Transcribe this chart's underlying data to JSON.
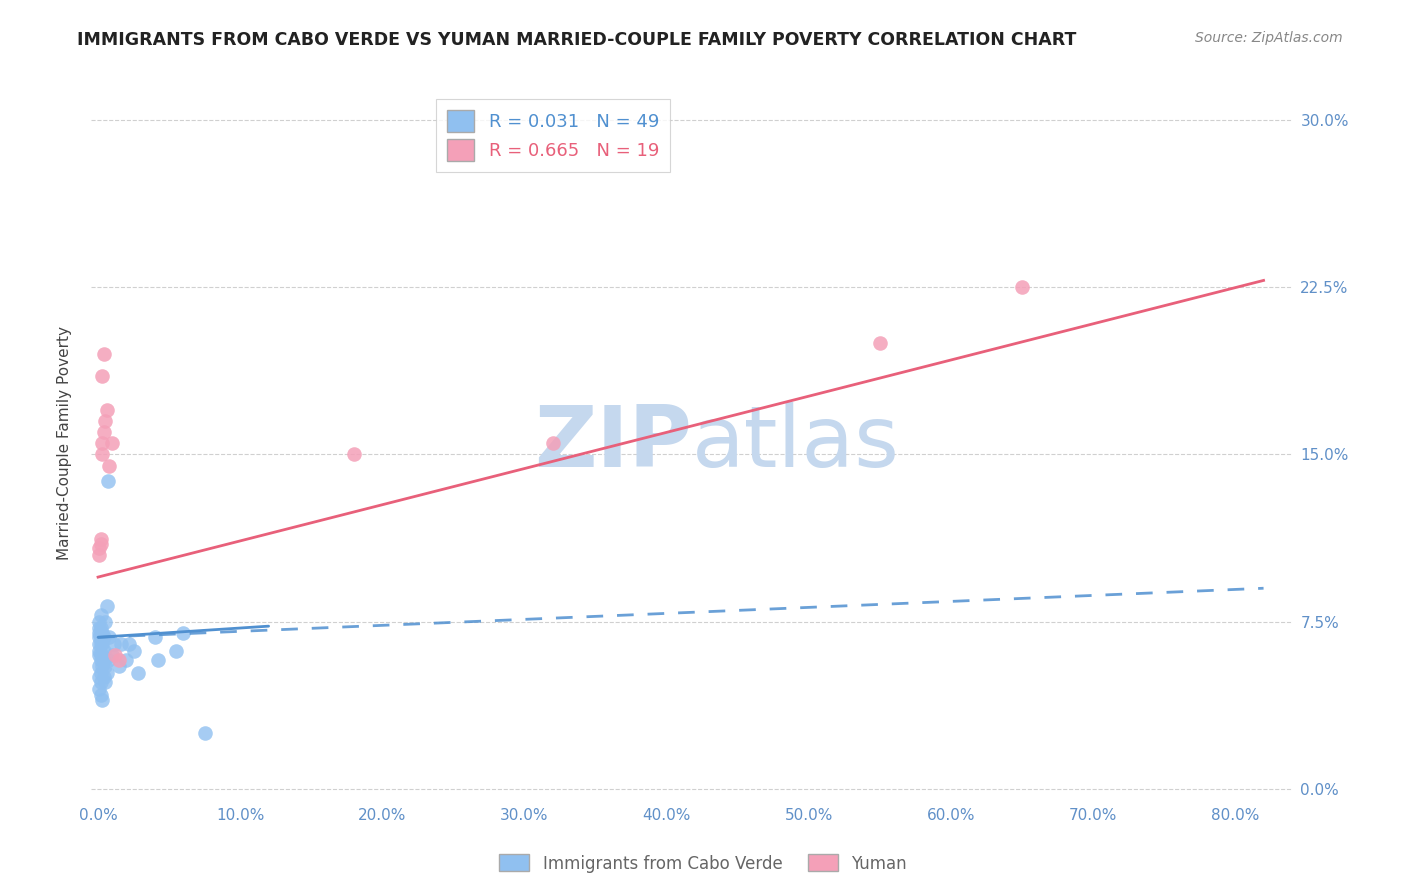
{
  "title": "IMMIGRANTS FROM CABO VERDE VS YUMAN MARRIED-COUPLE FAMILY POVERTY CORRELATION CHART",
  "source": "Source: ZipAtlas.com",
  "ylabel": "Married-Couple Family Poverty",
  "xlabel_ticks": [
    "0.0%",
    "10.0%",
    "20.0%",
    "30.0%",
    "40.0%",
    "50.0%",
    "60.0%",
    "70.0%",
    "80.0%"
  ],
  "xlabel_vals": [
    0.0,
    0.1,
    0.2,
    0.3,
    0.4,
    0.5,
    0.6,
    0.7,
    0.8
  ],
  "ylabel_ticks": [
    "0.0%",
    "7.5%",
    "15.0%",
    "22.5%",
    "30.0%"
  ],
  "ylabel_vals": [
    0.0,
    0.075,
    0.15,
    0.225,
    0.3
  ],
  "xlim": [
    -0.005,
    0.84
  ],
  "ylim": [
    -0.005,
    0.315
  ],
  "blue_R": 0.031,
  "blue_N": 49,
  "pink_R": 0.665,
  "pink_N": 19,
  "blue_scatter_x": [
    0.001,
    0.001,
    0.001,
    0.001,
    0.001,
    0.001,
    0.001,
    0.001,
    0.001,
    0.001,
    0.002,
    0.002,
    0.002,
    0.002,
    0.002,
    0.002,
    0.002,
    0.002,
    0.002,
    0.003,
    0.003,
    0.003,
    0.003,
    0.003,
    0.004,
    0.004,
    0.004,
    0.004,
    0.005,
    0.005,
    0.005,
    0.006,
    0.006,
    0.007,
    0.007,
    0.008,
    0.01,
    0.011,
    0.015,
    0.016,
    0.02,
    0.022,
    0.025,
    0.028,
    0.04,
    0.042,
    0.055,
    0.06,
    0.075
  ],
  "blue_scatter_y": [
    0.045,
    0.05,
    0.055,
    0.06,
    0.062,
    0.065,
    0.068,
    0.07,
    0.072,
    0.075,
    0.042,
    0.048,
    0.052,
    0.058,
    0.06,
    0.065,
    0.068,
    0.072,
    0.078,
    0.04,
    0.055,
    0.06,
    0.065,
    0.07,
    0.05,
    0.058,
    0.062,
    0.068,
    0.048,
    0.055,
    0.075,
    0.052,
    0.082,
    0.058,
    0.138,
    0.068,
    0.06,
    0.065,
    0.055,
    0.065,
    0.058,
    0.065,
    0.062,
    0.052,
    0.068,
    0.058,
    0.062,
    0.07,
    0.025
  ],
  "pink_scatter_x": [
    0.001,
    0.001,
    0.002,
    0.002,
    0.003,
    0.003,
    0.004,
    0.005,
    0.006,
    0.008,
    0.01,
    0.012,
    0.015,
    0.18,
    0.32,
    0.55,
    0.65,
    0.003,
    0.004
  ],
  "pink_scatter_y": [
    0.105,
    0.108,
    0.11,
    0.112,
    0.15,
    0.155,
    0.16,
    0.165,
    0.17,
    0.145,
    0.155,
    0.06,
    0.058,
    0.15,
    0.155,
    0.2,
    0.225,
    0.185,
    0.195
  ],
  "blue_solid_line_x": [
    0.0,
    0.12
  ],
  "blue_solid_line_y": [
    0.068,
    0.073
  ],
  "blue_dash_line_x": [
    0.0,
    0.82
  ],
  "blue_dash_line_y": [
    0.068,
    0.09
  ],
  "pink_line_x": [
    0.0,
    0.82
  ],
  "pink_line_y": [
    0.095,
    0.228
  ],
  "watermark_line1": "ZIP",
  "watermark_line2": "atlas",
  "bg_color": "#ffffff",
  "blue_color": "#90c0f0",
  "pink_color": "#f4a0b8",
  "blue_line_color": "#5090d0",
  "pink_line_color": "#e8607a",
  "grid_color": "#d0d0d0",
  "axis_label_color": "#6090c8",
  "title_color": "#222222",
  "source_color": "#888888",
  "ylabel_color": "#444444",
  "legend_border_color": "#cccccc",
  "watermark_color": "#c5d8ee"
}
